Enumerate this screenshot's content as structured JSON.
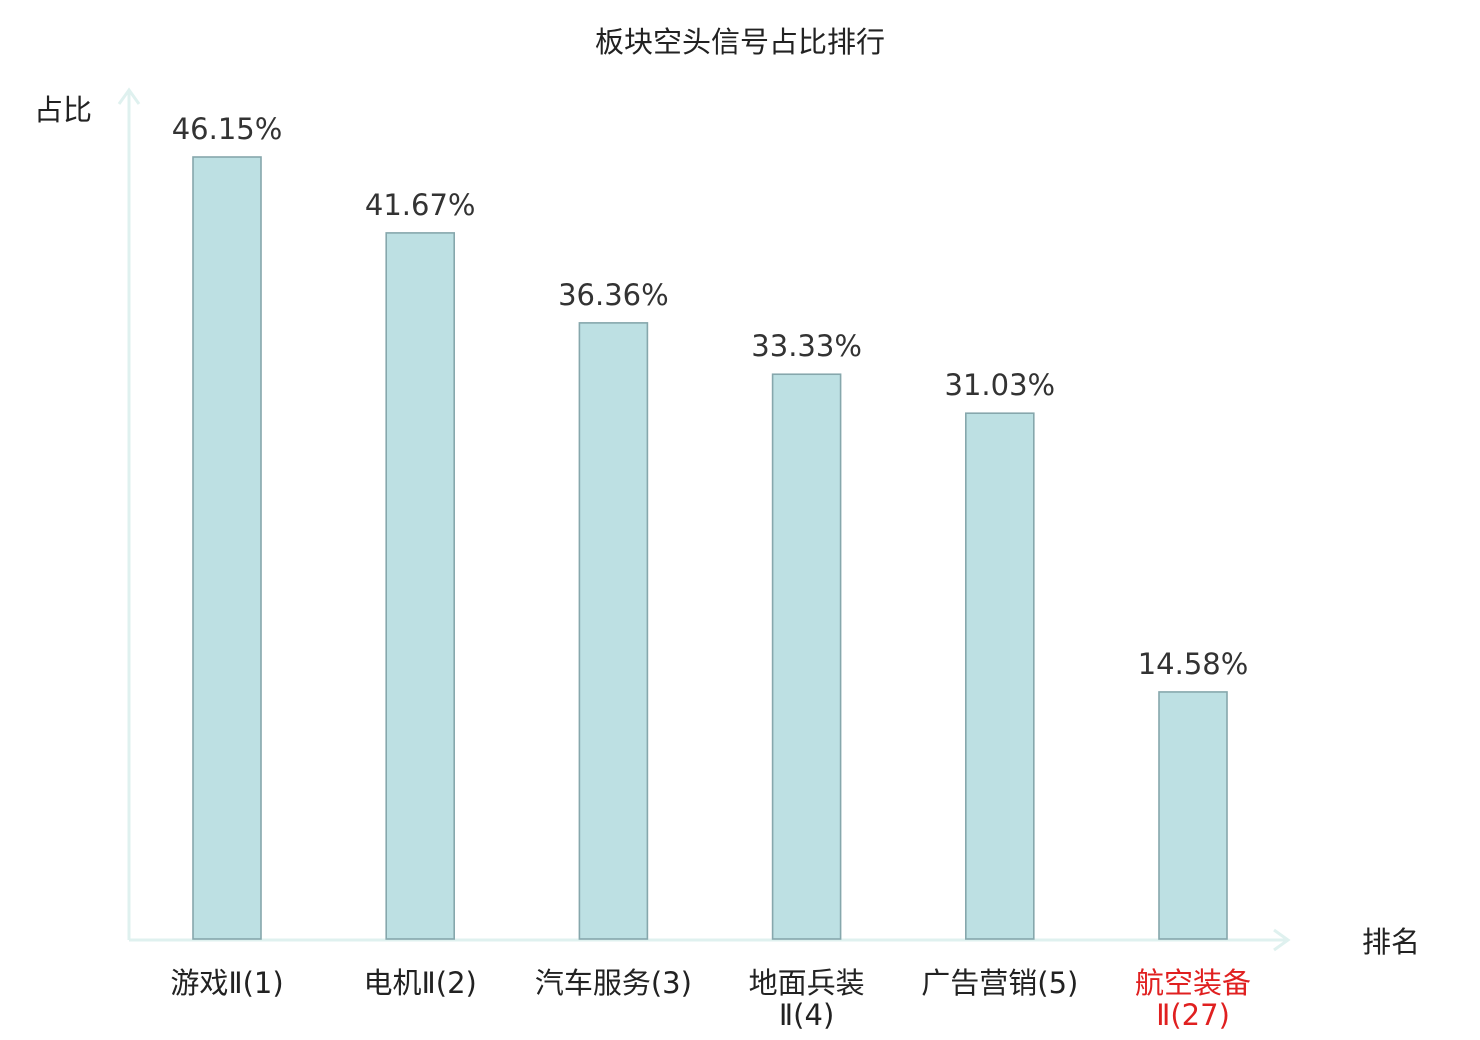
{
  "chart_data": {
    "type": "bar",
    "title": "板块空头信号占比排行",
    "ylabel": "占比",
    "xlabel": "排名",
    "categories": [
      [
        "游戏Ⅱ(1)"
      ],
      [
        "电机Ⅱ(2)"
      ],
      [
        "汽车服务(3)"
      ],
      [
        "地面兵装",
        "Ⅱ(4)"
      ],
      [
        "广告营销(5)"
      ],
      [
        "航空装备",
        "Ⅱ(27)"
      ]
    ],
    "values": [
      46.15,
      41.67,
      36.36,
      33.33,
      31.03,
      14.58
    ],
    "value_labels": [
      "46.15%",
      "41.67%",
      "36.36%",
      "33.33%",
      "31.03%",
      "14.58%"
    ],
    "highlight_index": 5,
    "ylim": [
      0,
      50
    ],
    "grid": false,
    "legend": "none",
    "colors": {
      "bar_fill": "#bde0e3",
      "bar_stroke": "#86a7ac",
      "axis": "#dff1ef",
      "highlight_text": "#e02020"
    }
  }
}
